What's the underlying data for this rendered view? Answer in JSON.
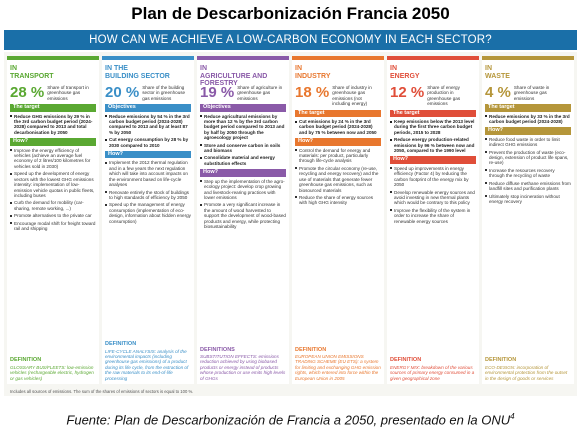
{
  "header": {
    "title": "Plan de Descarbonización Francia 2050",
    "banner": "HOW CAN WE ACHIEVE A LOW-CARBON ECONOMY IN EACH SECTOR?"
  },
  "sectors": [
    {
      "prefix": "IN",
      "label": "TRANSPORT",
      "color": "#5aa832",
      "share": "28 %",
      "share_text": "Share of transport in greenhouse gas emissions",
      "target_heading": "The target",
      "targets": [
        "Reduce GHG emissions by 29 % in the 3rd carbon budget period (2024-2028) compared to 2013 and total decarbonisation by 2050"
      ],
      "how_heading": "How?",
      "how": [
        "Improve the energy efficiency of vehicles (achieve an average fuel economy of 2 litres/100 kilometres for vehicles sold in 2030)",
        "Speed up the development of energy vectors with the lowest GHG emissions intensity: implementation of low-emission vehicle quotas in public fleets, including buses",
        "Curb the demand for mobility (car-sharing, remote working, ...)",
        "Promote alternatives to the private car",
        "Encourage modal shift for freight toward rail and shipping"
      ],
      "definition_heading": "DEFINITION",
      "definition": "GLOSSARY BUS/FLEETS: low-emission vehicles (rechargeable electric, hydrogen or gas vehicles)"
    },
    {
      "prefix": "IN THE",
      "label": "BUILDING SECTOR",
      "color": "#3a8fc7",
      "share": "20 %",
      "share_text": "Share of the building sector in greenhouse gas emissions",
      "target_heading": "Objectives",
      "targets": [
        "Reduce emissions by 54 % in the 3rd carbon budget period (2024-2028) compared to 2013 and by at least 87 % by 2050",
        "Cut energy consumption by 28 % by 2030 compared to 2010"
      ],
      "how_heading": "How?",
      "how": [
        "Implement the 2012 thermal regulation and in a few years the next regulation which will take into account impacts on the environment based on life-cycle analyses",
        "Renovate entirely the stock of buildings to high standards of efficiency by 2050",
        "Speed up the management of energy consumption (implementation of eco-design, information about hidden energy consumption)"
      ],
      "definition_heading": "DEFINITION",
      "definition": "LIFE-CYCLE ANALYSIS: analysis of the environmental impacts (including greenhouse gas emissions) of a product during its life cycle, from the extraction of the raw materials to its end-of-life processing"
    },
    {
      "prefix": "IN",
      "label": "AGRICULTURE AND FORESTRY",
      "color": "#8a5aa8",
      "share": "19 %",
      "share_text": "Share of agriculture in greenhouse gas emissions",
      "target_heading": "Objectives",
      "targets": [
        "Reduce agricultural emissions by more than 12 % by the 3rd carbon budget period compared to 2013 and by half by 2050 through the agroecology project",
        "Store and conserve carbon in soils and biomass",
        "Consolidate material and energy substitution effects"
      ],
      "how_heading": "How?",
      "how": [
        "Step up the implementation of the agro-ecology project: develop crop growing and livestock-rearing practices with lower emissions",
        "Promote a very significant increase in the amount of wood harvested to support the development of wood-based products and energy, while protecting biosustainability"
      ],
      "definition_heading": "DEFINITIONS",
      "definition": "SUBSTITUTION EFFECTS: emissions reduction achieved by using biobased products or energy instead of products whose production or use emits high levels of GHGs"
    },
    {
      "prefix": "IN",
      "label": "INDUSTRY",
      "color": "#e8772e",
      "share": "18 %",
      "share_text": "Share of industry in greenhouse gas emissions (not including energy)",
      "target_heading": "The target",
      "targets": [
        "Cut emissions by 24 % in the 3rd carbon budget period (2024-2028) and by 75 % between now and 2050"
      ],
      "how_heading": "How?",
      "how": [
        "Control the demand for energy and materials: per product, particularly through life-cycle analysis",
        "Promote the circular economy (re-use, recycling and energy recovery) and the use of materials that generate fewer greenhouse gas emissions, such as biosourced materials",
        "Reduce the share of energy sources with high GHG intensity"
      ],
      "definition_heading": "DEFINITION",
      "definition": "EUROPEAN UNION EMISSIONS TRADING SCHEME (EU ETS): a system for limiting and exchanging GHG emission rights, which entered into force within the European Union in 2005"
    },
    {
      "prefix": "IN",
      "label": "ENERGY",
      "color": "#e04e39",
      "share": "12 %",
      "share_text": "Share of energy production in greenhouse gas emissions",
      "target_heading": "The target",
      "targets": [
        "Keep emissions below the 2013 level during the first three carbon budget periods, 2015 to 2028",
        "Reduce energy production-related emissions by 96 % between now and 2050, compared to the 1990 level"
      ],
      "how_heading": "How?",
      "how": [
        "Speed up improvements in energy efficiency (Factor 4) by reducing the carbon footprint of the energy mix by 2050",
        "Develop renewable energy sources and avoid investing in new thermal plants which would be contrary to this policy",
        "Improve the flexibility of the system in order to increase the share of renewable energy sources"
      ],
      "definition_heading": "DEFINITION",
      "definition": "ENERGY MIX: breakdown of the various sources of primary energy consumed in a given geographical zone"
    },
    {
      "prefix": "IN",
      "label": "WASTE",
      "color": "#b5963a",
      "share": "4 %",
      "share_text": "Share of waste in greenhouse gas emissions",
      "target_heading": "The target",
      "targets": [
        "Reduce emissions by 33 % in the 3rd carbon budget period (2024-2028)"
      ],
      "how_heading": "How?",
      "how": [
        "Reduce food waste in order to limit indirect GHG emissions",
        "Prevent the production of waste (eco-design, extension of product life spans, re-use)",
        "Increase the resources recovery through the recycling of waste",
        "Reduce diffuse methane emissions from landfill sites and purification plants",
        "Ultimately stop incineration without energy recovery"
      ],
      "definition_heading": "DEFINITION",
      "definition": "ECO-DESIGN: incorporation of environmental protection from the outset in the design of goods or services"
    }
  ],
  "footnote": "Includes all sources of emissions. The sum of the shares of emissions of sectors is equal to 100 %.",
  "caption": "Fuente: Plan de Descarbonización de Francia a 2050, presentado en la ONU",
  "caption_sup": "4"
}
